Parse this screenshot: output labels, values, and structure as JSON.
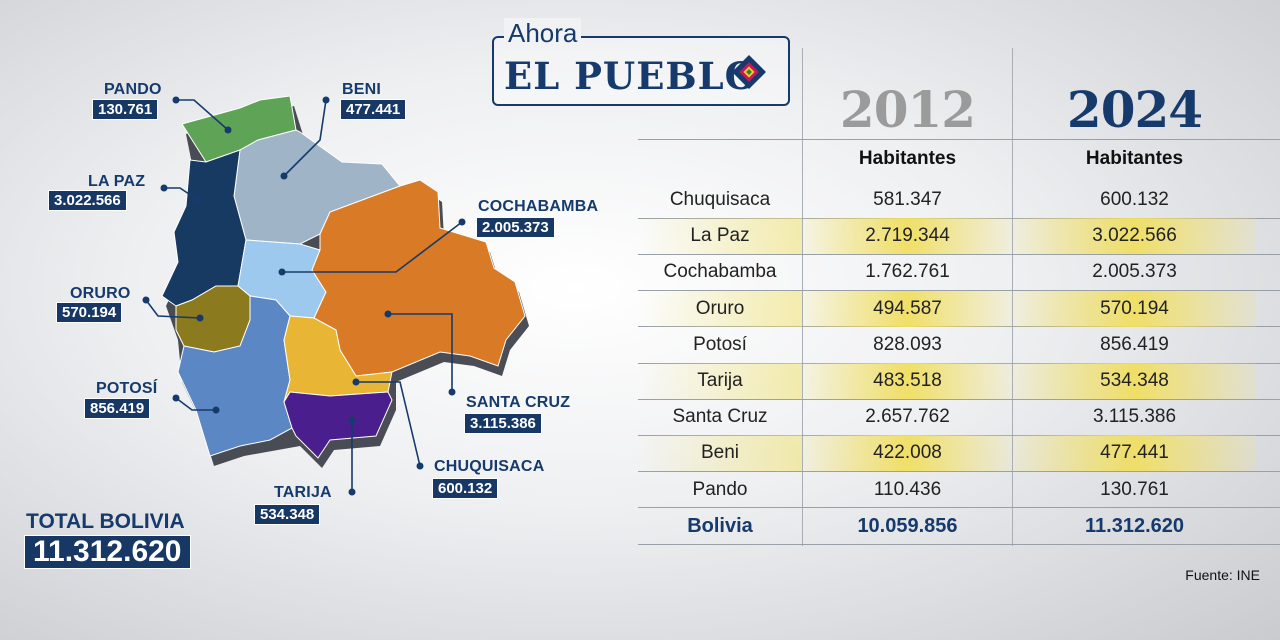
{
  "logo": {
    "top": "Ahora",
    "main": "EL PUEBLO"
  },
  "map": {
    "departments": [
      {
        "id": "pando",
        "name": "PANDO",
        "value": "130.761",
        "color": "#5fa357"
      },
      {
        "id": "beni",
        "name": "BENI",
        "value": "477.441",
        "color": "#9fb4c6"
      },
      {
        "id": "lapaz",
        "name": "LA PAZ",
        "value": "3.022.566",
        "color": "#163a62"
      },
      {
        "id": "cochabamba",
        "name": "COCHABAMBA",
        "value": "2.005.373",
        "color": "#9ec9ee"
      },
      {
        "id": "oruro",
        "name": "ORURO",
        "value": "570.194",
        "color": "#8c7a1f"
      },
      {
        "id": "potosi",
        "name": "POTOSÍ",
        "value": "856.419",
        "color": "#5b87c4"
      },
      {
        "id": "santacruz",
        "name": "SANTA CRUZ",
        "value": "3.115.386",
        "color": "#d97b26"
      },
      {
        "id": "chuquisaca",
        "name": "CHUQUISACA",
        "value": "600.132",
        "color": "#e9b534"
      },
      {
        "id": "tarija",
        "name": "TARIJA",
        "value": "534.348",
        "color": "#4a1e8c"
      }
    ],
    "total_label": "TOTAL BOLIVIA",
    "total_value": "11.312.620"
  },
  "table": {
    "years": [
      "2012",
      "2024"
    ],
    "year_colors": [
      "#9b9b9b",
      "#163a6b"
    ],
    "subheader": "Habitantes",
    "rows": [
      {
        "name": "Chuquisaca",
        "y2012": "581.347",
        "y2024": "600.132",
        "highlight": false
      },
      {
        "name": "La Paz",
        "y2012": "2.719.344",
        "y2024": "3.022.566",
        "highlight": true
      },
      {
        "name": "Cochabamba",
        "y2012": "1.762.761",
        "y2024": "2.005.373",
        "highlight": false
      },
      {
        "name": "Oruro",
        "y2012": "494.587",
        "y2024": "570.194",
        "highlight": true
      },
      {
        "name": "Potosí",
        "y2012": "828.093",
        "y2024": "856.419",
        "highlight": false
      },
      {
        "name": "Tarija",
        "y2012": "483.518",
        "y2024": "534.348",
        "highlight": true
      },
      {
        "name": "Santa Cruz",
        "y2012": "2.657.762",
        "y2024": "3.115.386",
        "highlight": false
      },
      {
        "name": "Beni",
        "y2012": "422.008",
        "y2024": "477.441",
        "highlight": true
      },
      {
        "name": "Pando",
        "y2012": "110.436",
        "y2024": "130.761",
        "highlight": false
      }
    ],
    "total": {
      "name": "Bolivia",
      "y2012": "10.059.856",
      "y2024": "11.312.620"
    },
    "source": "Fuente: INE"
  },
  "chart_data": {
    "type": "table",
    "columns": [
      "",
      "2012",
      "2024"
    ],
    "subheader": "Habitantes",
    "rows": [
      [
        "Chuquisaca",
        581347,
        600132
      ],
      [
        "La Paz",
        2719344,
        3022566
      ],
      [
        "Cochabamba",
        1762761,
        2005373
      ],
      [
        "Oruro",
        494587,
        570194
      ],
      [
        "Potosí",
        828093,
        856419
      ],
      [
        "Tarija",
        483518,
        534348
      ],
      [
        "Santa Cruz",
        2657762,
        3115386
      ],
      [
        "Beni",
        422008,
        477441
      ],
      [
        "Pando",
        110436,
        130761
      ],
      [
        "Bolivia",
        10059856,
        11312620
      ]
    ]
  }
}
